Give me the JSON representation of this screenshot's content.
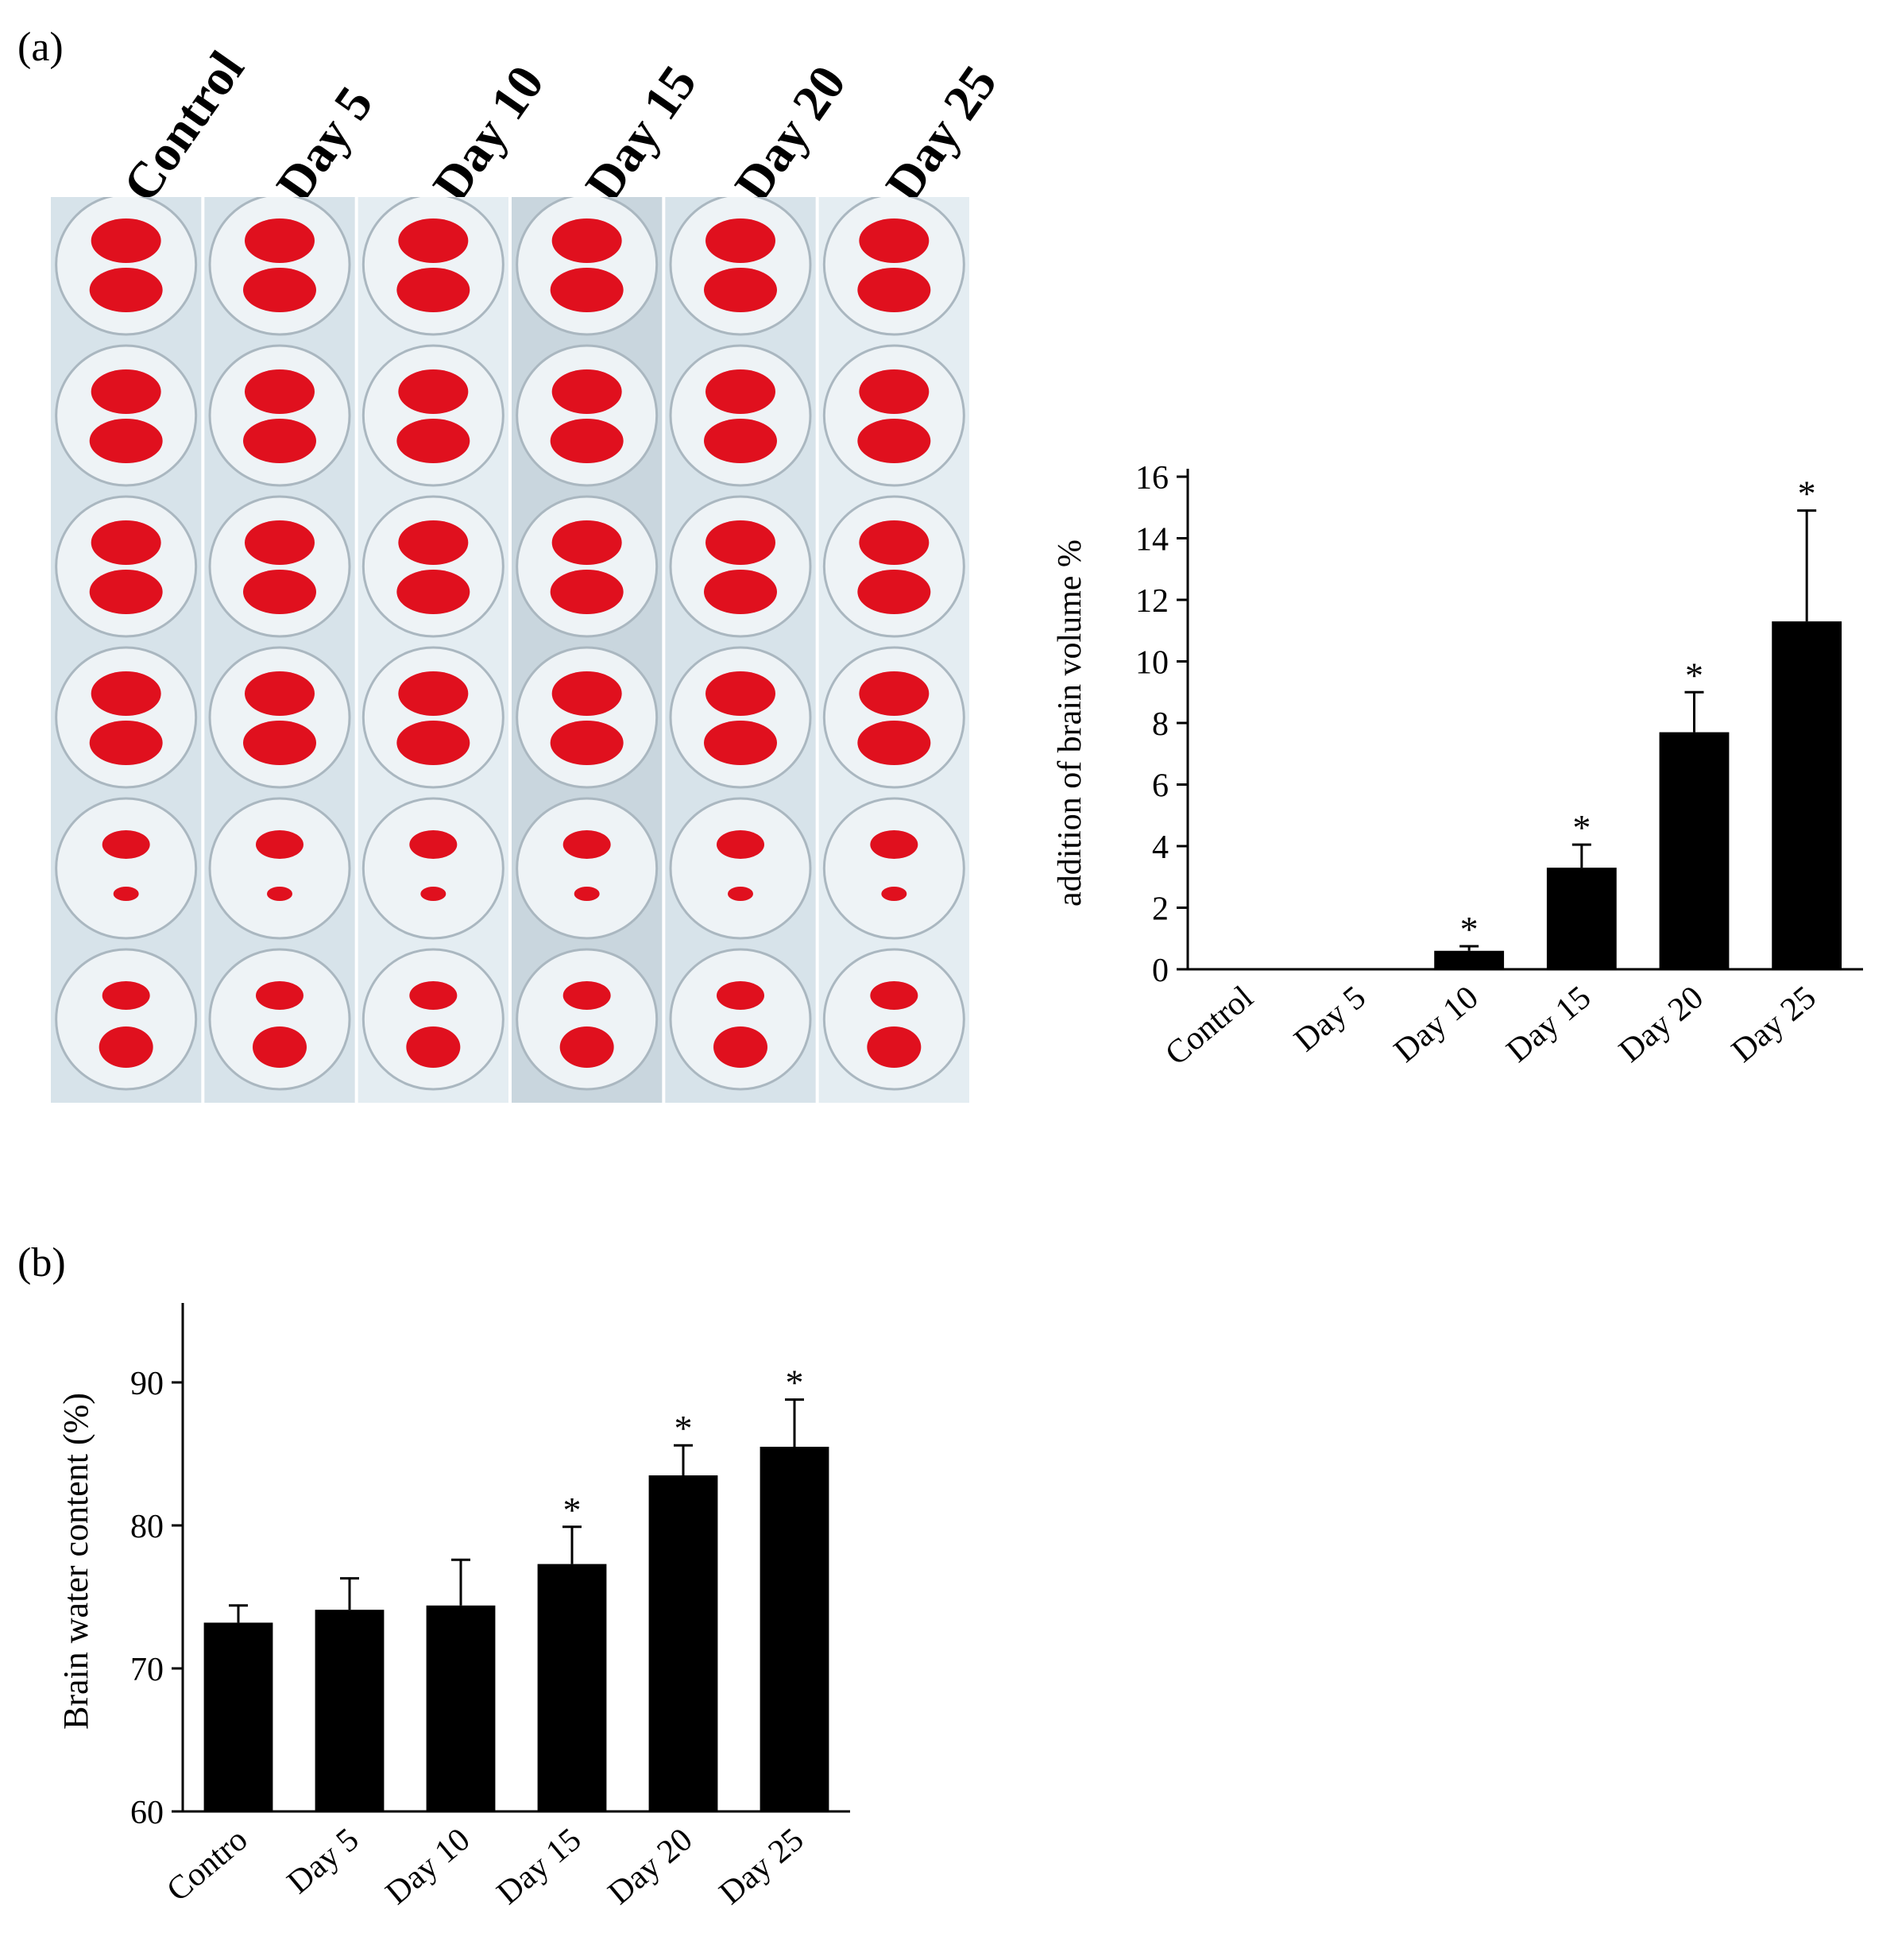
{
  "panels": {
    "a": "(a)",
    "b": "(b)"
  },
  "photo_columns": [
    "Control",
    "Day 5",
    "Day 10",
    "Day 15",
    "Day 20",
    "Day 25"
  ],
  "colors": {
    "bar": "#000000",
    "tissue": "#e0101e",
    "dish_bg": "#d7e3ea"
  },
  "chart_data": [
    {
      "type": "bar",
      "categories": [
        "Control",
        "Day 5",
        "Day 10",
        "Day 15",
        "Day 20",
        "Day 25"
      ],
      "values": [
        0,
        0,
        0.6,
        3.3,
        7.7,
        11.3
      ],
      "errors": [
        0,
        0,
        0.15,
        0.75,
        1.3,
        3.6
      ],
      "significance": [
        "",
        "",
        "*",
        "*",
        "*",
        "*"
      ],
      "ylabel": "addition of brain volume %",
      "xlabel": "",
      "ylim": [
        0,
        16
      ],
      "yticks": [
        0,
        2,
        4,
        6,
        8,
        10,
        12,
        14,
        16
      ],
      "grid": false
    },
    {
      "type": "bar",
      "categories": [
        "Contro",
        "Day 5",
        "Day 10",
        "Day 15",
        "Day 20",
        "Day 25"
      ],
      "values": [
        73.2,
        74.1,
        74.4,
        77.3,
        83.5,
        85.5
      ],
      "errors": [
        1.2,
        2.2,
        3.2,
        2.6,
        2.1,
        3.3
      ],
      "significance": [
        "",
        "",
        "",
        "*",
        "*",
        "*"
      ],
      "ylabel": "Brain water content (%)",
      "xlabel": "",
      "ylim": [
        60,
        95
      ],
      "yticks": [
        60,
        70,
        80,
        90
      ],
      "grid": false
    }
  ]
}
